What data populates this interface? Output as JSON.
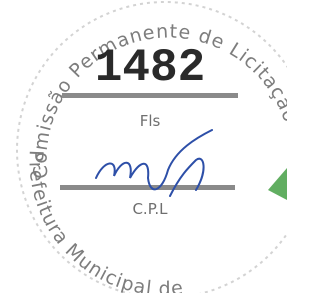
{
  "stamp": {
    "top_text": "Comissão Permanente de Licitação",
    "number": "1482",
    "fls_label": "Fls",
    "cpl_label": "C.P.L",
    "bottom_text": "Prefeitura Municipal de"
  }
}
